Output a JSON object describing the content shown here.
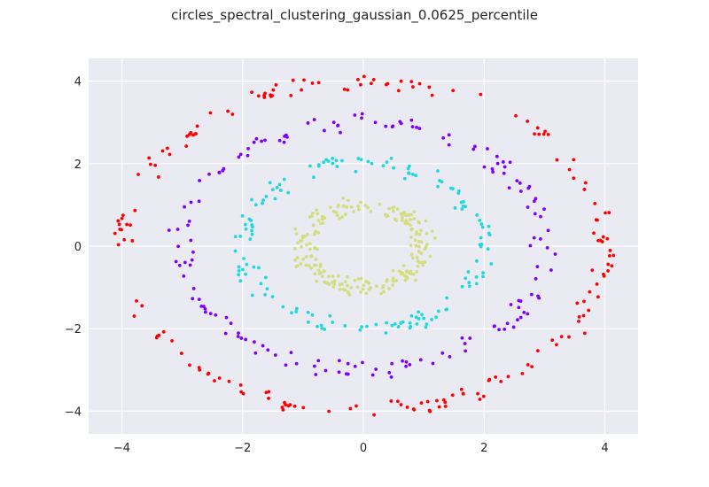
{
  "chart_data": {
    "type": "scatter",
    "title": "circles_spectral_clustering_gaussian_0.0625_percentile",
    "xlabel": "",
    "ylabel": "",
    "xlim": [
      -4.55,
      4.55
    ],
    "ylim": [
      -4.55,
      4.55
    ],
    "xticks": [
      -4,
      -2,
      0,
      2,
      4
    ],
    "yticks": [
      -4,
      -2,
      0,
      2,
      4
    ],
    "xtick_labels": [
      "−4",
      "−2",
      "0",
      "2",
      "4"
    ],
    "ytick_labels": [
      "−4",
      "−2",
      "0",
      "2",
      "4"
    ],
    "grid": true,
    "background": "#eaeaf2",
    "grid_color": "#ffffff",
    "legend": "none",
    "series": [
      {
        "color": "#ff0000",
        "approx_radius": 4.0,
        "count": 180
      },
      {
        "color": "#7f00ff",
        "approx_radius": 3.0,
        "count": 160
      },
      {
        "color": "#1fd8e0",
        "approx_radius": 2.0,
        "count": 150
      },
      {
        "color": "#d4dd80",
        "approx_radius": 1.0,
        "count": 210
      }
    ]
  }
}
